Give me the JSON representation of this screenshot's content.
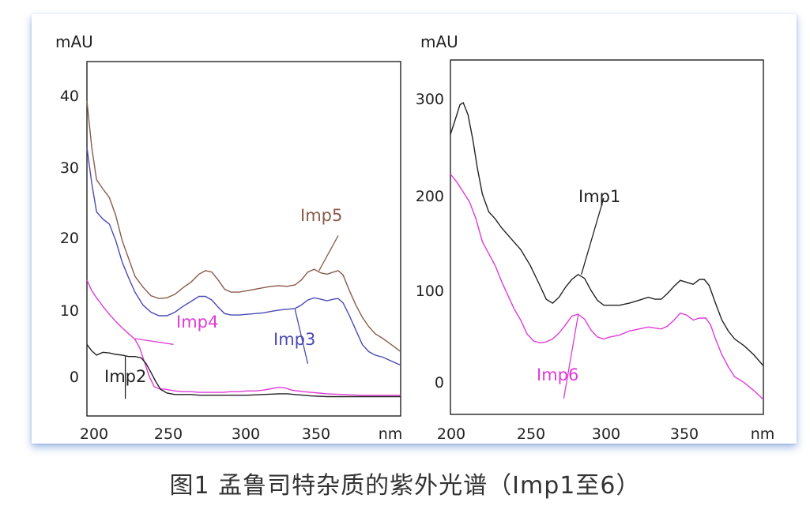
{
  "caption": "图1 孟鲁司特杂质的紫外光谱（Imp1至6）",
  "chart_data": [
    {
      "type": "line",
      "ylabel": "mAU",
      "xlabel": "nm",
      "xlim": [
        200,
        396
      ],
      "ylim": [
        -2.5,
        47
      ],
      "x_ticks": [
        "200",
        "250",
        "300",
        "350"
      ],
      "y_ticks": [
        "0",
        "10",
        "20",
        "30",
        "40"
      ],
      "grid": false,
      "series": [
        {
          "name": "Imp5",
          "color": "#8B5A4A",
          "points": [
            [
              200,
              41.5
            ],
            [
              203,
              35
            ],
            [
              206,
              30.5
            ],
            [
              210,
              29.2
            ],
            [
              214,
              28
            ],
            [
              218,
              25.5
            ],
            [
              222,
              22
            ],
            [
              226,
              19.5
            ],
            [
              230,
              17
            ],
            [
              235,
              15.5
            ],
            [
              240,
              14.3
            ],
            [
              245,
              13.9
            ],
            [
              250,
              14
            ],
            [
              255,
              14.5
            ],
            [
              260,
              15.4
            ],
            [
              265,
              16.2
            ],
            [
              270,
              17.3
            ],
            [
              274,
              17.8
            ],
            [
              278,
              17.6
            ],
            [
              282,
              16.5
            ],
            [
              286,
              15.2
            ],
            [
              290,
              14.8
            ],
            [
              295,
              14.8
            ],
            [
              300,
              15
            ],
            [
              305,
              15.2
            ],
            [
              310,
              15.4
            ],
            [
              315,
              15.6
            ],
            [
              320,
              15.7
            ],
            [
              325,
              15.6
            ],
            [
              330,
              15.8
            ],
            [
              334,
              16.5
            ],
            [
              338,
              17.6
            ],
            [
              342,
              18
            ],
            [
              346,
              17.5
            ],
            [
              350,
              17.3
            ],
            [
              354,
              17.6
            ],
            [
              357,
              17.8
            ],
            [
              360,
              17.2
            ],
            [
              364,
              15
            ],
            [
              368,
              13
            ],
            [
              372,
              11.3
            ],
            [
              376,
              10
            ],
            [
              380,
              9
            ],
            [
              385,
              8.3
            ],
            [
              390,
              7.5
            ],
            [
              396,
              6.5
            ]
          ]
        },
        {
          "name": "Imp3",
          "color": "#4A4AB5",
          "points": [
            [
              200,
              35
            ],
            [
              203,
              30
            ],
            [
              206,
              26
            ],
            [
              210,
              25
            ],
            [
              214,
              24.3
            ],
            [
              218,
              22
            ],
            [
              222,
              19
            ],
            [
              226,
              16.8
            ],
            [
              230,
              14.8
            ],
            [
              235,
              13
            ],
            [
              240,
              12
            ],
            [
              245,
              11.5
            ],
            [
              250,
              11.5
            ],
            [
              255,
              12
            ],
            [
              260,
              12.8
            ],
            [
              265,
              13.5
            ],
            [
              270,
              14.2
            ],
            [
              274,
              14.2
            ],
            [
              278,
              13.7
            ],
            [
              282,
              12.7
            ],
            [
              286,
              11.8
            ],
            [
              290,
              11.6
            ],
            [
              295,
              11.6
            ],
            [
              300,
              11.7
            ],
            [
              305,
              11.8
            ],
            [
              310,
              11.9
            ],
            [
              315,
              12.1
            ],
            [
              320,
              12.3
            ],
            [
              325,
              12.4
            ],
            [
              330,
              12.5
            ],
            [
              334,
              13
            ],
            [
              338,
              13.7
            ],
            [
              342,
              14
            ],
            [
              346,
              13.8
            ],
            [
              350,
              13.6
            ],
            [
              354,
              13.8
            ],
            [
              357,
              13.9
            ],
            [
              360,
              13.3
            ],
            [
              364,
              11.5
            ],
            [
              368,
              9.5
            ],
            [
              372,
              7.5
            ],
            [
              376,
              6.5
            ],
            [
              380,
              6
            ],
            [
              385,
              5.7
            ],
            [
              390,
              5.2
            ],
            [
              396,
              4.6
            ]
          ]
        },
        {
          "name": "Imp4",
          "color": "#E03BD8",
          "points": [
            [
              200,
              16.5
            ],
            [
              203,
              15
            ],
            [
              206,
              14
            ],
            [
              210,
              12.8
            ],
            [
              214,
              11.7
            ],
            [
              218,
              10.7
            ],
            [
              222,
              9.8
            ],
            [
              226,
              9
            ],
            [
              230,
              8.2
            ],
            [
              233,
              7
            ],
            [
              236,
              5
            ],
            [
              239,
              3
            ],
            [
              242,
              1.6
            ],
            [
              245,
              1.3
            ],
            [
              250,
              1.2
            ],
            [
              255,
              1
            ],
            [
              260,
              0.9
            ],
            [
              265,
              0.9
            ],
            [
              270,
              0.8
            ],
            [
              275,
              0.8
            ],
            [
              280,
              0.8
            ],
            [
              285,
              0.8
            ],
            [
              290,
              0.9
            ],
            [
              295,
              0.9
            ],
            [
              300,
              1
            ],
            [
              305,
              1
            ],
            [
              310,
              1.1
            ],
            [
              315,
              1.3
            ],
            [
              320,
              1.5
            ],
            [
              324,
              1.4
            ],
            [
              328,
              1.1
            ],
            [
              335,
              0.9
            ],
            [
              340,
              0.8
            ],
            [
              345,
              0.7
            ],
            [
              350,
              0.6
            ],
            [
              360,
              0.5
            ],
            [
              370,
              0.4
            ],
            [
              380,
              0.4
            ],
            [
              396,
              0.4
            ]
          ]
        },
        {
          "name": "Imp2",
          "color": "#222222",
          "points": [
            [
              200,
              7.5
            ],
            [
              203,
              6.6
            ],
            [
              206,
              6
            ],
            [
              210,
              6.4
            ],
            [
              214,
              6.3
            ],
            [
              218,
              6.1
            ],
            [
              222,
              6
            ],
            [
              226,
              5.8
            ],
            [
              230,
              5.8
            ],
            [
              234,
              5.6
            ],
            [
              237,
              4.8
            ],
            [
              240,
              3.6
            ],
            [
              243,
              2.3
            ],
            [
              246,
              1.2
            ],
            [
              250,
              0.7
            ],
            [
              255,
              0.5
            ],
            [
              260,
              0.5
            ],
            [
              265,
              0.5
            ],
            [
              270,
              0.4
            ],
            [
              280,
              0.4
            ],
            [
              290,
              0.4
            ],
            [
              300,
              0.4
            ],
            [
              310,
              0.5
            ],
            [
              320,
              0.6
            ],
            [
              325,
              0.6
            ],
            [
              330,
              0.5
            ],
            [
              340,
              0.3
            ],
            [
              350,
              0.2
            ],
            [
              360,
              0.2
            ],
            [
              370,
              0.2
            ],
            [
              380,
              0.2
            ],
            [
              396,
              0.2
            ]
          ]
        }
      ],
      "annotations": [
        {
          "text": "Imp5",
          "color": "#8B5A4A",
          "at": [
            357,
            22.7
          ],
          "target": [
            345,
            17.8
          ]
        },
        {
          "text": "Imp3",
          "color": "#4A4AB5",
          "at": [
            338,
            4.8
          ],
          "target": [
            330,
            12.4
          ]
        },
        {
          "text": "Imp4",
          "color": "#E03BD8",
          "at": [
            254,
            7.5
          ],
          "target": [
            230,
            8.3
          ]
        },
        {
          "text": "Imp2",
          "color": "#222222",
          "at": [
            224,
            -0.1
          ],
          "target": [
            224,
            5.8
          ]
        }
      ]
    },
    {
      "type": "line",
      "ylabel": "mAU",
      "xlabel": "nm",
      "xlim": [
        200,
        396
      ],
      "ylim": [
        -12,
        345
      ],
      "x_ticks": [
        "200",
        "250",
        "300",
        "350"
      ],
      "y_ticks": [
        "0",
        "100",
        "200",
        "300"
      ],
      "grid": false,
      "series": [
        {
          "name": "Imp1",
          "color": "#222222",
          "points": [
            [
              200,
              270
            ],
            [
              203,
              285
            ],
            [
              206,
              300
            ],
            [
              208,
              302
            ],
            [
              211,
              290
            ],
            [
              214,
              265
            ],
            [
              217,
              235
            ],
            [
              220,
              210
            ],
            [
              224,
              192
            ],
            [
              228,
              185
            ],
            [
              232,
              176
            ],
            [
              238,
              165
            ],
            [
              244,
              154
            ],
            [
              250,
              138
            ],
            [
              256,
              118
            ],
            [
              260,
              104
            ],
            [
              264,
              100
            ],
            [
              268,
              106
            ],
            [
              272,
              116
            ],
            [
              276,
              124
            ],
            [
              280,
              129
            ],
            [
              284,
              125
            ],
            [
              288,
              113
            ],
            [
              292,
              103
            ],
            [
              296,
              98
            ],
            [
              300,
              98
            ],
            [
              306,
              98
            ],
            [
              312,
              100
            ],
            [
              318,
              103
            ],
            [
              324,
              106
            ],
            [
              328,
              104
            ],
            [
              332,
              104
            ],
            [
              336,
              110
            ],
            [
              340,
              117
            ],
            [
              344,
              123
            ],
            [
              348,
              121
            ],
            [
              352,
              119
            ],
            [
              356,
              124
            ],
            [
              359,
              124
            ],
            [
              362,
              118
            ],
            [
              366,
              100
            ],
            [
              370,
              83
            ],
            [
              374,
              72
            ],
            [
              378,
              64
            ],
            [
              384,
              57
            ],
            [
              390,
              48
            ],
            [
              396,
              37
            ]
          ]
        },
        {
          "name": "Imp6",
          "color": "#E03BD8",
          "points": [
            [
              200,
              230
            ],
            [
              204,
              222
            ],
            [
              208,
              212
            ],
            [
              212,
              202
            ],
            [
              216,
              185
            ],
            [
              220,
              162
            ],
            [
              224,
              150
            ],
            [
              228,
              138
            ],
            [
              232,
              122
            ],
            [
              236,
              108
            ],
            [
              240,
              94
            ],
            [
              244,
              83
            ],
            [
              248,
              69
            ],
            [
              252,
              62
            ],
            [
              256,
              60
            ],
            [
              260,
              61
            ],
            [
              264,
              64
            ],
            [
              268,
              70
            ],
            [
              272,
              78
            ],
            [
              276,
              87
            ],
            [
              280,
              89
            ],
            [
              284,
              84
            ],
            [
              288,
              73
            ],
            [
              292,
              66
            ],
            [
              296,
              64
            ],
            [
              300,
              66
            ],
            [
              306,
              68
            ],
            [
              312,
              72
            ],
            [
              318,
              74
            ],
            [
              324,
              76
            ],
            [
              328,
              75
            ],
            [
              332,
              74
            ],
            [
              336,
              77
            ],
            [
              340,
              83
            ],
            [
              344,
              90
            ],
            [
              348,
              88
            ],
            [
              352,
              83
            ],
            [
              356,
              85
            ],
            [
              360,
              85
            ],
            [
              363,
              78
            ],
            [
              366,
              64
            ],
            [
              370,
              48
            ],
            [
              374,
              36
            ],
            [
              378,
              26
            ],
            [
              384,
              20
            ],
            [
              390,
              12
            ],
            [
              396,
              3
            ]
          ]
        }
      ],
      "annotations": [
        {
          "text": "Imp1",
          "color": "#222222",
          "at": [
            296,
            206
          ],
          "target": [
            282,
            129
          ]
        },
        {
          "text": "Imp6",
          "color": "#E03BD8",
          "at": [
            271,
            4
          ],
          "target": [
            280,
            88
          ]
        }
      ]
    }
  ]
}
